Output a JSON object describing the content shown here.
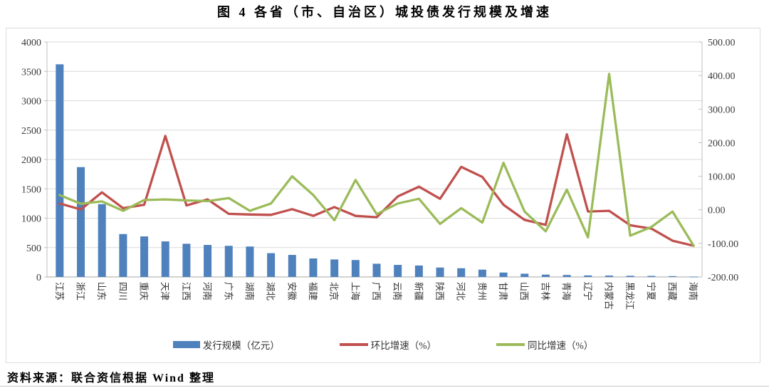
{
  "page": {
    "title": "图 4  各省（市、自治区）城投债发行规模及增速",
    "source_note": "资料来源：联合资信根据 Wind 整理"
  },
  "legend": {
    "items": [
      {
        "label": "发行规模（亿元）",
        "marker": "bar",
        "color": "#4F81BD"
      },
      {
        "label": "环比增速（%）",
        "marker": "line",
        "color": "#C0504D"
      },
      {
        "label": "同比增速（%）",
        "marker": "line",
        "color": "#9BBB59"
      }
    ]
  },
  "chart_data": {
    "type": "combo-bar-line",
    "title": "图 4  各省（市、自治区）城投债发行规模及增速",
    "categories": [
      "江苏",
      "浙江",
      "山东",
      "四川",
      "重庆",
      "天津",
      "江西",
      "河南",
      "广东",
      "湖南",
      "湖北",
      "安徽",
      "福建",
      "北京",
      "上海",
      "广西",
      "云南",
      "新疆",
      "陕西",
      "河北",
      "贵州",
      "甘肃",
      "山西",
      "吉林",
      "青海",
      "辽宁",
      "内蒙古",
      "黑龙江",
      "宁夏",
      "西藏",
      "海南"
    ],
    "series": [
      {
        "name": "发行规模（亿元）",
        "type": "bar",
        "axis": "left",
        "color": "#4F81BD",
        "values": [
          3620,
          1870,
          1240,
          730,
          690,
          605,
          565,
          545,
          530,
          518,
          405,
          375,
          315,
          298,
          288,
          225,
          205,
          195,
          160,
          148,
          124,
          75,
          55,
          40,
          34,
          26,
          24,
          20,
          18,
          14,
          6
        ]
      },
      {
        "name": "环比增速（%）",
        "type": "line",
        "axis": "right",
        "color": "#C0504D",
        "values": [
          19,
          1,
          52,
          5,
          15,
          220,
          13,
          31,
          -12,
          -14,
          -15,
          2,
          -18,
          8,
          -18,
          -22,
          40,
          69,
          33,
          128,
          98,
          15,
          -30,
          -45,
          225,
          -5,
          -3,
          -46,
          -56,
          -92,
          -107
        ]
      },
      {
        "name": "同比增速（%）",
        "type": "line",
        "axis": "right",
        "color": "#9BBB59",
        "values": [
          44,
          18,
          25,
          -3,
          29,
          31,
          28,
          26,
          35,
          -3,
          19,
          100,
          44,
          -31,
          89,
          -13,
          19,
          33,
          -42,
          5,
          -38,
          140,
          -5,
          -64,
          60,
          -82,
          405,
          -77,
          -51,
          -5,
          -107
        ]
      }
    ],
    "left_axis": {
      "min": 0,
      "max": 4000,
      "step": 500,
      "ticks": [
        "4000",
        "3500",
        "3000",
        "2500",
        "2000",
        "1500",
        "1000",
        "500",
        "0"
      ]
    },
    "right_axis": {
      "min": -200,
      "max": 500,
      "step": 100,
      "ticks": [
        "500.00",
        "400.00",
        "300.00",
        "200.00",
        "100.00",
        "0.00",
        "-100.00",
        "-200.00"
      ]
    },
    "grid": true,
    "legend_position": "bottom",
    "colors": {
      "grid": "#D9D9D9",
      "axis": "#A6A6A6",
      "axis_side": "#BFBFBF",
      "tick_text": "#3A3A3A"
    }
  }
}
